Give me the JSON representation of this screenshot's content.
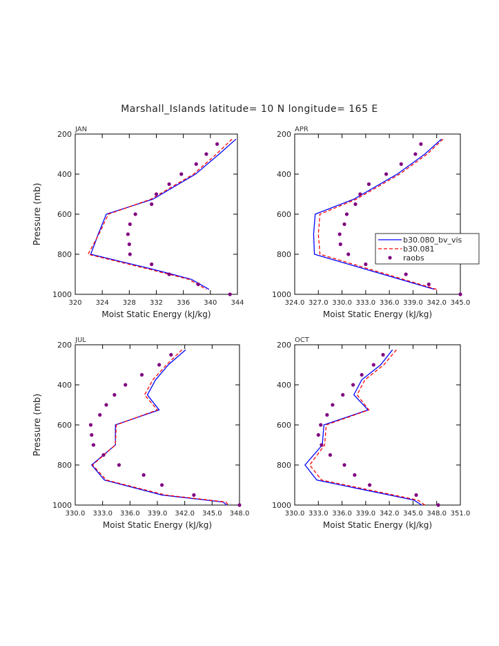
{
  "title": "Marshall_Islands  latitude= 10 N longitude= 165 E",
  "colors": {
    "model1": "#0000ff",
    "model2": "#ff0000",
    "obs": "#800080",
    "axis": "#000000"
  },
  "chart_data": [
    {
      "type": "line",
      "panel_label": "JAN",
      "xlabel": "Moist Static Energy (kJ/kg)",
      "ylabel": "Pressure (mb)",
      "xlim": [
        320,
        344
      ],
      "ylim": [
        200,
        1000
      ],
      "y_inverted": true,
      "xticks": [
        "320",
        "324",
        "328",
        "332",
        "336",
        "340",
        "344"
      ],
      "yticks": [
        "200",
        "400",
        "600",
        "800",
        "1000"
      ],
      "pressure": [
        225,
        300,
        400,
        525,
        600,
        700,
        800,
        875,
        925,
        975
      ],
      "series": [
        {
          "name": "b30.080_bv_vis",
          "values": [
            343.8,
            341.3,
            337.8,
            331.5,
            324.6,
            323.4,
            322.3,
            331.5,
            337.2,
            339.8
          ],
          "style": "solid"
        },
        {
          "name": "b30.081",
          "values": [
            343.2,
            340.9,
            337.5,
            331.2,
            324.9,
            323.5,
            321.9,
            331.0,
            336.8,
            339.4
          ],
          "style": "dashed"
        },
        {
          "name": "raobs",
          "x": [
            341.0,
            339.4,
            337.9,
            335.7,
            333.9,
            332.0,
            331.3,
            328.9,
            328.1,
            327.8,
            328.0,
            328.1,
            331.3,
            333.9,
            338.2,
            342.9
          ],
          "y": [
            250,
            300,
            350,
            400,
            450,
            500,
            550,
            600,
            650,
            700,
            750,
            800,
            850,
            900,
            950,
            1000
          ],
          "style": "markers"
        }
      ]
    },
    {
      "type": "line",
      "panel_label": "APR",
      "xlabel": "Moist Static Energy (kJ/kg)",
      "ylabel": "",
      "xlim": [
        324.0,
        345.0
      ],
      "ylim": [
        200,
        1000
      ],
      "y_inverted": true,
      "xticks": [
        "324.0",
        "327.0",
        "330.0",
        "333.0",
        "336.0",
        "339.0",
        "342.0",
        "345.0"
      ],
      "xticklabels_printed": "324.0327.0330.0333.0336.0339.0342.0345.0",
      "yticks": [
        "200",
        "400",
        "600",
        "800",
        "1000"
      ],
      "pressure": [
        225,
        300,
        400,
        525,
        600,
        700,
        800,
        975
      ],
      "series": [
        {
          "name": "b30.080_bv_vis",
          "values": [
            342.6,
            340.5,
            337.0,
            331.5,
            326.6,
            326.4,
            326.5,
            341.7
          ],
          "style": "solid"
        },
        {
          "name": "b30.081",
          "values": [
            342.8,
            340.8,
            337.3,
            331.8,
            327.2,
            327.0,
            327.2,
            342.0
          ],
          "style": "dashed"
        },
        {
          "name": "raobs",
          "x": [
            340.0,
            339.3,
            337.5,
            335.6,
            333.4,
            332.3,
            331.7,
            330.6,
            330.3,
            329.7,
            329.8,
            330.8,
            333.0,
            338.1,
            341.0,
            345.0
          ],
          "y": [
            250,
            300,
            350,
            400,
            450,
            500,
            550,
            600,
            650,
            700,
            750,
            800,
            850,
            900,
            950,
            1000
          ],
          "style": "markers"
        }
      ]
    },
    {
      "type": "line",
      "panel_label": "JUL",
      "xlabel": "Moist Static Energy (kJ/kg)",
      "ylabel": "Pressure (mb)",
      "xlim": [
        330.0,
        348.0
      ],
      "ylim": [
        200,
        1000
      ],
      "y_inverted": true,
      "xticks": [
        "330.0",
        "333.0",
        "336.0",
        "339.0",
        "342.0",
        "345.0",
        "348.0"
      ],
      "yticks": [
        "200",
        "400",
        "600",
        "800",
        "1000"
      ],
      "pressure": [
        225,
        300,
        375,
        450,
        525,
        600,
        700,
        800,
        875,
        950,
        985,
        1000
      ],
      "series": [
        {
          "name": "b30.080_bv_vis",
          "values": [
            342.1,
            340.2,
            338.8,
            337.9,
            339.2,
            334.4,
            334.4,
            331.8,
            333.2,
            339.5,
            346.2,
            346.6
          ],
          "style": "solid"
        },
        {
          "name": "b30.081",
          "values": [
            341.7,
            340.0,
            338.5,
            337.6,
            339.0,
            334.5,
            334.4,
            331.9,
            333.4,
            339.9,
            346.5,
            346.8
          ],
          "style": "dashed"
        },
        {
          "name": "raobs",
          "x": [
            340.5,
            339.2,
            337.3,
            335.5,
            334.3,
            333.4,
            332.7,
            331.7,
            331.8,
            332.0,
            333.1,
            334.8,
            337.5,
            339.5,
            343.0,
            348.0
          ],
          "y": [
            250,
            300,
            350,
            400,
            450,
            500,
            550,
            600,
            650,
            700,
            750,
            800,
            850,
            900,
            950,
            1000
          ],
          "style": "markers"
        }
      ]
    },
    {
      "type": "line",
      "panel_label": "OCT",
      "xlabel": "Moist Static Energy (kJ/kg)",
      "ylabel": "",
      "xlim": [
        330.0,
        351.0
      ],
      "ylim": [
        200,
        1000
      ],
      "y_inverted": true,
      "xticks": [
        "330.0",
        "333.0",
        "336.0",
        "339.0",
        "342.0",
        "345.0",
        "348.0",
        "351.0"
      ],
      "xticklabels_printed": "330.0333.0336.0339.0342.0345.0348.0351.0",
      "yticks": [
        "200",
        "400",
        "600",
        "800",
        "1000"
      ],
      "pressure": [
        225,
        300,
        375,
        450,
        525,
        600,
        700,
        800,
        875,
        975,
        1000
      ],
      "series": [
        {
          "name": "b30.080_bv_vis",
          "values": [
            342.4,
            340.9,
            338.5,
            337.5,
            339.3,
            333.7,
            333.5,
            331.3,
            332.8,
            345.1,
            346.1
          ],
          "style": "solid"
        },
        {
          "name": "b30.081",
          "values": [
            342.9,
            341.3,
            338.9,
            337.9,
            339.4,
            334.0,
            333.8,
            331.9,
            333.4,
            345.6,
            346.5
          ],
          "style": "dashed"
        },
        {
          "name": "raobs",
          "x": [
            341.2,
            340.0,
            338.5,
            337.4,
            336.1,
            334.8,
            334.1,
            333.3,
            333.0,
            333.4,
            334.5,
            336.3,
            337.6,
            339.5,
            345.4,
            348.2
          ],
          "y": [
            250,
            300,
            350,
            400,
            450,
            500,
            550,
            600,
            650,
            700,
            750,
            800,
            850,
            900,
            950,
            1000
          ],
          "style": "markers"
        }
      ]
    }
  ],
  "legend": {
    "placement": "right of APR panel",
    "entries": [
      {
        "label": "b30.080_bv_vis",
        "style": "solid"
      },
      {
        "label": "b30.081",
        "style": "dashed"
      },
      {
        "label": "raobs",
        "style": "markers"
      }
    ]
  }
}
